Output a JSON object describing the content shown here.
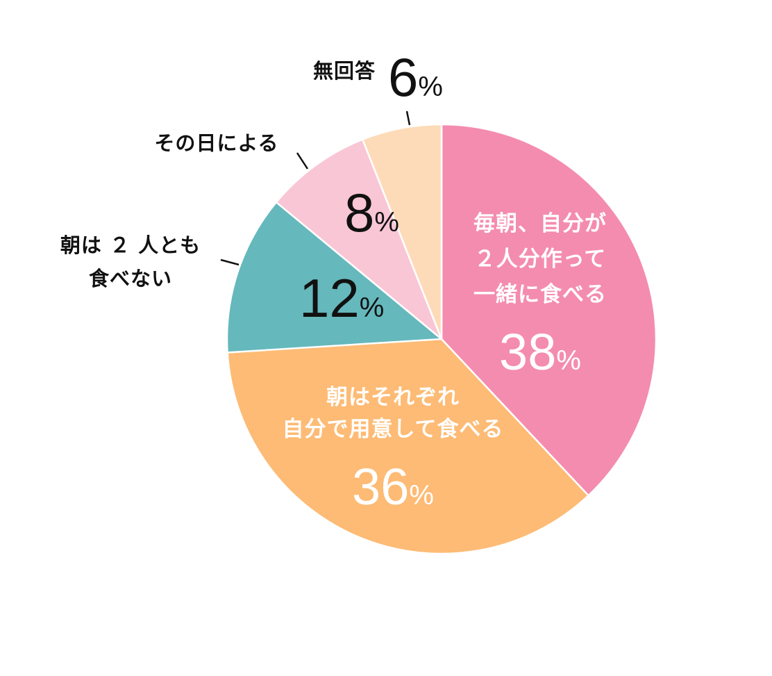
{
  "chart_data": {
    "type": "pie",
    "slices": [
      {
        "label_lines": [
          "毎朝、自分が",
          "２人分作って",
          "一緒に食べる"
        ],
        "value": 38,
        "value_text": "38",
        "percent_sign": "%",
        "color": "#F48CB0"
      },
      {
        "label_lines": [
          "朝はそれぞれ",
          "自分で用意して食べる"
        ],
        "value": 36,
        "value_text": "36",
        "percent_sign": "%",
        "color": "#FDBB75"
      },
      {
        "label_lines": [
          "朝は ２ 人とも",
          "食べない"
        ],
        "value": 12,
        "value_text": "12",
        "percent_sign": "%",
        "color": "#65B8BC"
      },
      {
        "label_lines": [
          "その日による"
        ],
        "value": 8,
        "value_text": "8",
        "percent_sign": "%",
        "color": "#F9C6D6"
      },
      {
        "label_lines": [
          "無回答"
        ],
        "value": 6,
        "value_text": "6",
        "percent_sign": "%",
        "color": "#FDDBB8"
      }
    ],
    "start_angle": "top",
    "direction": "clockwise",
    "slice_border_color": "#ffffff",
    "legend": "none"
  }
}
